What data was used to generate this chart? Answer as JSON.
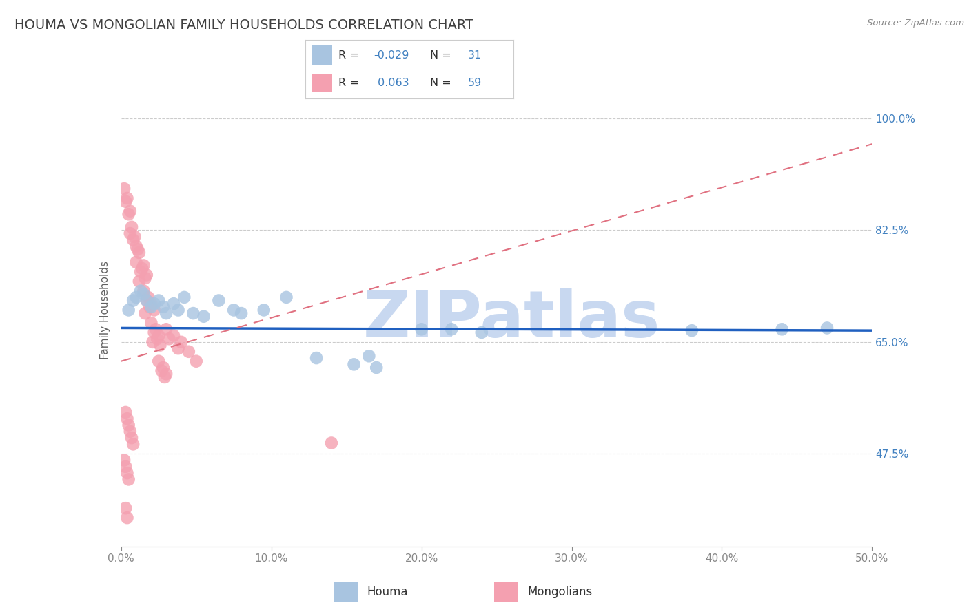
{
  "title": "HOUMA VS MONGOLIAN FAMILY HOUSEHOLDS CORRELATION CHART",
  "source": "Source: ZipAtlas.com",
  "ylabel": "Family Households",
  "xlim": [
    0.0,
    0.5
  ],
  "ylim": [
    0.33,
    1.07
  ],
  "xtick_labels": [
    "0.0%",
    "10.0%",
    "20.0%",
    "30.0%",
    "40.0%",
    "50.0%"
  ],
  "xtick_vals": [
    0.0,
    0.1,
    0.2,
    0.3,
    0.4,
    0.5
  ],
  "ytick_labels": [
    "47.5%",
    "65.0%",
    "82.5%",
    "100.0%"
  ],
  "ytick_vals": [
    0.475,
    0.65,
    0.825,
    1.0
  ],
  "houma_R": -0.029,
  "houma_N": 31,
  "mongolian_R": 0.063,
  "mongolian_N": 59,
  "houma_color": "#a8c4e0",
  "mongolian_color": "#f4a0b0",
  "houma_line_color": "#2060c0",
  "mongolian_line_color": "#e07080",
  "background_color": "#ffffff",
  "grid_color": "#cccccc",
  "title_color": "#404040",
  "axis_label_color": "#4080c0",
  "watermark_color": "#c8d8f0",
  "legend_R_color": "#4080c0",
  "legend_N_color": "#4080c0",
  "watermark_text": "ZIPatlas",
  "title_fontsize": 14,
  "axis_fontsize": 11,
  "tick_fontsize": 11,
  "houma_trend_y0": 0.672,
  "houma_trend_y1": 0.668,
  "mongolian_trend_y0": 0.62,
  "mongolian_trend_y1": 0.96
}
